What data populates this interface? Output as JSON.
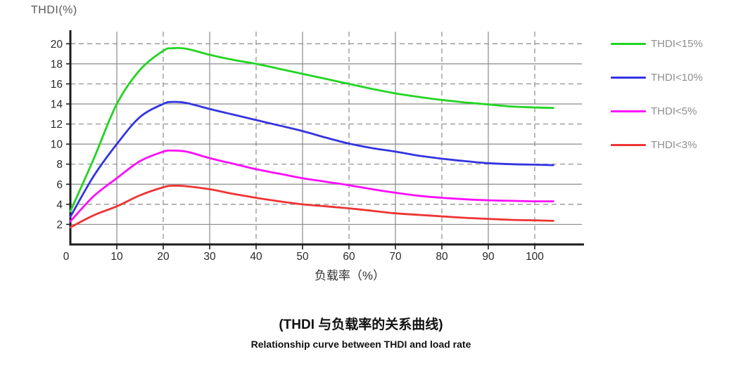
{
  "figure": {
    "y_axis_label": "THDI(%)",
    "x_axis_label": "负载率（%）",
    "caption_zh": "(THDI 与负载率的关系曲线)",
    "caption_en": "Relationship curve between THDI and load rate"
  },
  "legend": {
    "items": [
      {
        "label": "THDI<15%",
        "color": "#22d422"
      },
      {
        "label": "THDI<10%",
        "color": "#3434e0"
      },
      {
        "label": "THDI<5%",
        "color": "#fb0dfb"
      },
      {
        "label": "THDI<3%",
        "color": "#ee3333"
      }
    ]
  },
  "chart_data": {
    "type": "line",
    "title": "(THDI 与负载率的关系曲线)",
    "subtitle": "Relationship curve between THDI and load rate",
    "xlabel": "负载率（%）",
    "ylabel": "THDI(%)",
    "xlim": [
      0,
      107
    ],
    "ylim": [
      0,
      21
    ],
    "x_ticks": [
      0,
      10,
      20,
      30,
      40,
      50,
      60,
      70,
      80,
      90,
      100
    ],
    "y_ticks": [
      2,
      4,
      6,
      8,
      10,
      12,
      14,
      16,
      18,
      20
    ],
    "grid": "horizontal solid at 2,6,10,14,18 and dashed at 4,8,12,16,20; vertical solid at 10,30,50,70,90 and dashed at 20,40,60,80,100",
    "grid_color": "#8a8a8a",
    "axis_color": "#1c1c1c",
    "legend_position": "right",
    "x": [
      0,
      5,
      10,
      15,
      20,
      22,
      25,
      30,
      35,
      40,
      45,
      50,
      55,
      60,
      65,
      70,
      75,
      80,
      85,
      90,
      95,
      100,
      104
    ],
    "series": [
      {
        "name": "THDI<15%",
        "color": "#22d422",
        "values": [
          3.3,
          8.5,
          14.0,
          17.4,
          19.3,
          19.55,
          19.5,
          18.9,
          18.4,
          18.0,
          17.5,
          17.0,
          16.5,
          16.0,
          15.5,
          15.05,
          14.7,
          14.4,
          14.15,
          13.95,
          13.75,
          13.65,
          13.6
        ]
      },
      {
        "name": "THDI<10%",
        "color": "#3434e0",
        "values": [
          2.75,
          6.8,
          10.0,
          12.7,
          14.0,
          14.2,
          14.1,
          13.5,
          12.95,
          12.4,
          11.85,
          11.3,
          10.65,
          10.05,
          9.6,
          9.25,
          8.85,
          8.55,
          8.3,
          8.1,
          8.0,
          7.95,
          7.9
        ]
      },
      {
        "name": "THDI<5%",
        "color": "#fb0dfb",
        "values": [
          2.3,
          4.8,
          6.6,
          8.3,
          9.25,
          9.35,
          9.25,
          8.6,
          8.05,
          7.5,
          7.05,
          6.6,
          6.25,
          5.9,
          5.5,
          5.15,
          4.85,
          4.65,
          4.5,
          4.4,
          4.35,
          4.3,
          4.3
        ]
      },
      {
        "name": "THDI<3%",
        "color": "#ee3333",
        "values": [
          1.7,
          2.9,
          3.8,
          4.9,
          5.7,
          5.85,
          5.8,
          5.5,
          5.05,
          4.65,
          4.3,
          4.0,
          3.8,
          3.6,
          3.35,
          3.1,
          2.95,
          2.8,
          2.65,
          2.55,
          2.45,
          2.4,
          2.35
        ]
      }
    ]
  }
}
